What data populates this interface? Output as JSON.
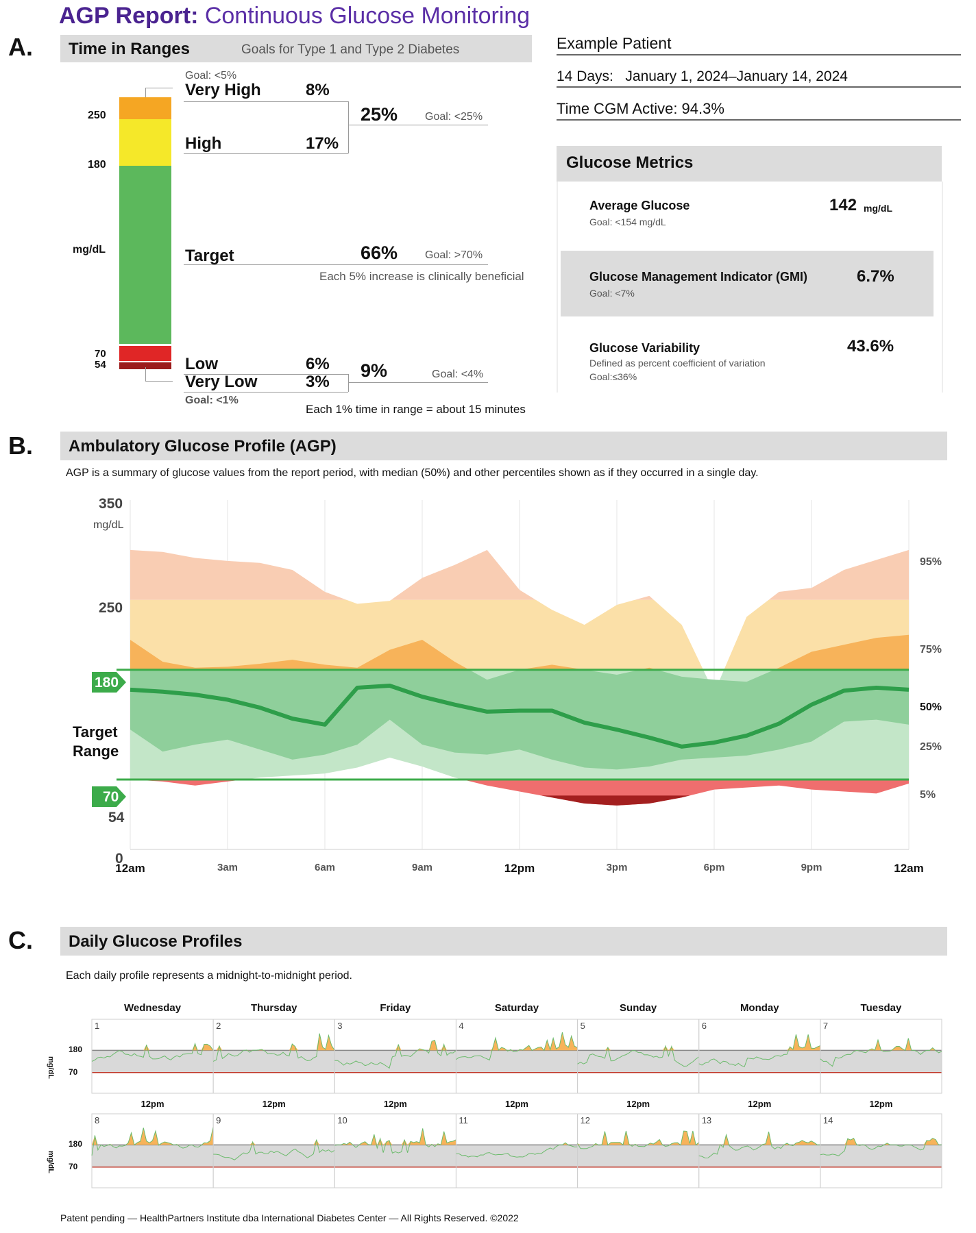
{
  "report": {
    "title_bold": "AGP Report:",
    "title_rest": " Continuous Glucose Monitoring"
  },
  "sections": {
    "a": "A.",
    "b": "B.",
    "c": "C."
  },
  "time_in_ranges": {
    "header": "Time in Ranges",
    "goals_caption": "Goals for Type 1 and Type 2 Diabetes",
    "unit": "mg/dL",
    "ticks": [
      "250",
      "180",
      "70",
      "54"
    ],
    "very_high": {
      "goal": "Goal: <5%",
      "label": "Very High",
      "value": "8%"
    },
    "high": {
      "label": "High",
      "value": "17%"
    },
    "combined_high": {
      "value": "25%",
      "goal": "Goal: <25%"
    },
    "target": {
      "label": "Target",
      "value": "66%",
      "goal": "Goal: >70%",
      "note": "Each 5% increase is clinically beneficial"
    },
    "low": {
      "label": "Low",
      "value": "6%"
    },
    "very_low": {
      "label": "Very Low",
      "value": "3%",
      "goal": "Goal: <1%"
    },
    "combined_low": {
      "value": "9%",
      "goal": "Goal: <4%"
    },
    "footnote": "Each 1% time in range = about 15 minutes",
    "colors": {
      "very_high": "#f5a623",
      "high": "#f5e829",
      "target": "#5cb85c",
      "low": "#e02626",
      "very_low": "#9b1b1b"
    },
    "fractions": {
      "very_high": 0.08,
      "high": 0.17,
      "target": 0.66,
      "low": 0.06,
      "very_low": 0.03
    }
  },
  "patient": {
    "name": "Example Patient",
    "days_label": "14 Days:",
    "date_range": "January 1, 2024–January 14, 2024",
    "cgm_active": "Time CGM Active: 94.3%"
  },
  "metrics": {
    "header": "Glucose Metrics",
    "average": {
      "label": "Average Glucose",
      "goal": "Goal: <154 mg/dL",
      "value": "142",
      "unit": "mg/dL"
    },
    "gmi": {
      "label": "Glucose Management Indicator (GMI)",
      "goal": "Goal: <7%",
      "value": "6.7%"
    },
    "variability": {
      "label": "Glucose Variability",
      "desc": "Defined as percent coefficient of variation",
      "goal": "Goal:≤36%",
      "value": "43.6%"
    }
  },
  "agp": {
    "header": "Ambulatory Glucose Profile (AGP)",
    "description": "AGP is a summary of glucose values from the report period, with median (50%) and other percentiles shown as if they occurred in a single day.",
    "target_label_1": "Target",
    "target_label_2": "Range",
    "unit": "mg/dL"
  },
  "chart_data": [
    {
      "type": "area",
      "title": "Ambulatory Glucose Profile (AGP)",
      "xlabel": "",
      "ylabel": "mg/dL",
      "ylim": [
        0,
        350
      ],
      "y_ticks": [
        "350",
        "250",
        "180",
        "70",
        "54",
        "0"
      ],
      "x_ticks": [
        "12am",
        "3am",
        "6am",
        "9am",
        "12pm",
        "3pm",
        "6pm",
        "9pm",
        "12am"
      ],
      "x_hours": [
        0,
        1,
        2,
        3,
        4,
        5,
        6,
        7,
        8,
        9,
        10,
        11,
        12,
        13,
        14,
        15,
        16,
        17,
        18,
        19,
        20,
        21,
        22,
        23,
        24
      ],
      "target_range": [
        70,
        180
      ],
      "percentile_labels": [
        "95%",
        "75%",
        "50%",
        "25%",
        "5%"
      ],
      "series": [
        {
          "name": "95%",
          "values": [
            300,
            298,
            292,
            289,
            287,
            280,
            258,
            246,
            249,
            272,
            285,
            300,
            260,
            240,
            225,
            245,
            254,
            225,
            157,
            233,
            258,
            262,
            280,
            290,
            300
          ]
        },
        {
          "name": "75%",
          "values": [
            210,
            188,
            182,
            183,
            186,
            190,
            185,
            182,
            200,
            210,
            188,
            170,
            180,
            185,
            180,
            175,
            182,
            173,
            170,
            168,
            182,
            198,
            205,
            212,
            215
          ]
        },
        {
          "name": "50%",
          "values": [
            160,
            158,
            155,
            150,
            142,
            131,
            125,
            162,
            164,
            153,
            145,
            138,
            139,
            139,
            127,
            120,
            112,
            103,
            107,
            114,
            126,
            145,
            159,
            162,
            160
          ]
        },
        {
          "name": "25%",
          "values": [
            120,
            98,
            105,
            110,
            100,
            90,
            95,
            105,
            130,
            105,
            97,
            95,
            100,
            90,
            82,
            80,
            83,
            90,
            92,
            94,
            100,
            108,
            128,
            130,
            125
          ]
        },
        {
          "name": "5%",
          "values": [
            70,
            68,
            64,
            68,
            72,
            74,
            76,
            82,
            92,
            83,
            72,
            64,
            58,
            52,
            46,
            44,
            46,
            52,
            60,
            62,
            64,
            60,
            58,
            56,
            66
          ]
        }
      ],
      "colors": {
        "band_5_95": "#f8cdb0",
        "band_25_75": "#8fcf9b",
        "median": "#2e9e4a",
        "above_target": "#f7b35a",
        "below_target": "#ef6e6e",
        "very_low": "#a31f1f",
        "target_lines": "#3cab4a"
      }
    },
    {
      "type": "line",
      "title": "Daily Glucose Profiles",
      "days": [
        {
          "weekday": "Wednesday",
          "day": "1"
        },
        {
          "weekday": "Thursday",
          "day": "2"
        },
        {
          "weekday": "Friday",
          "day": "3"
        },
        {
          "weekday": "Saturday",
          "day": "4"
        },
        {
          "weekday": "Sunday",
          "day": "5"
        },
        {
          "weekday": "Monday",
          "day": "6"
        },
        {
          "weekday": "Tuesday",
          "day": "7"
        },
        {
          "weekday": "",
          "day": "8"
        },
        {
          "weekday": "",
          "day": "9"
        },
        {
          "weekday": "",
          "day": "10"
        },
        {
          "weekday": "",
          "day": "11"
        },
        {
          "weekday": "",
          "day": "12"
        },
        {
          "weekday": "",
          "day": "13"
        },
        {
          "weekday": "",
          "day": "14"
        }
      ],
      "y_ticks": [
        "180",
        "70"
      ],
      "ylabel": "mg/dL",
      "x_tick": "12pm"
    }
  ],
  "daily": {
    "header": "Daily Glucose Profiles",
    "description": "Each daily profile represents a midnight-to-midnight period.",
    "weekdays": [
      "Wednesday",
      "Thursday",
      "Friday",
      "Saturday",
      "Sunday",
      "Monday",
      "Tuesday"
    ],
    "noon": "12pm",
    "y180": "180",
    "y70": "70",
    "ylabel": "mg/dL"
  },
  "footer": {
    "text": "Patent pending — HealthPartners Institute dba International Diabetes Center — All Rights Reserved. ©2022"
  }
}
